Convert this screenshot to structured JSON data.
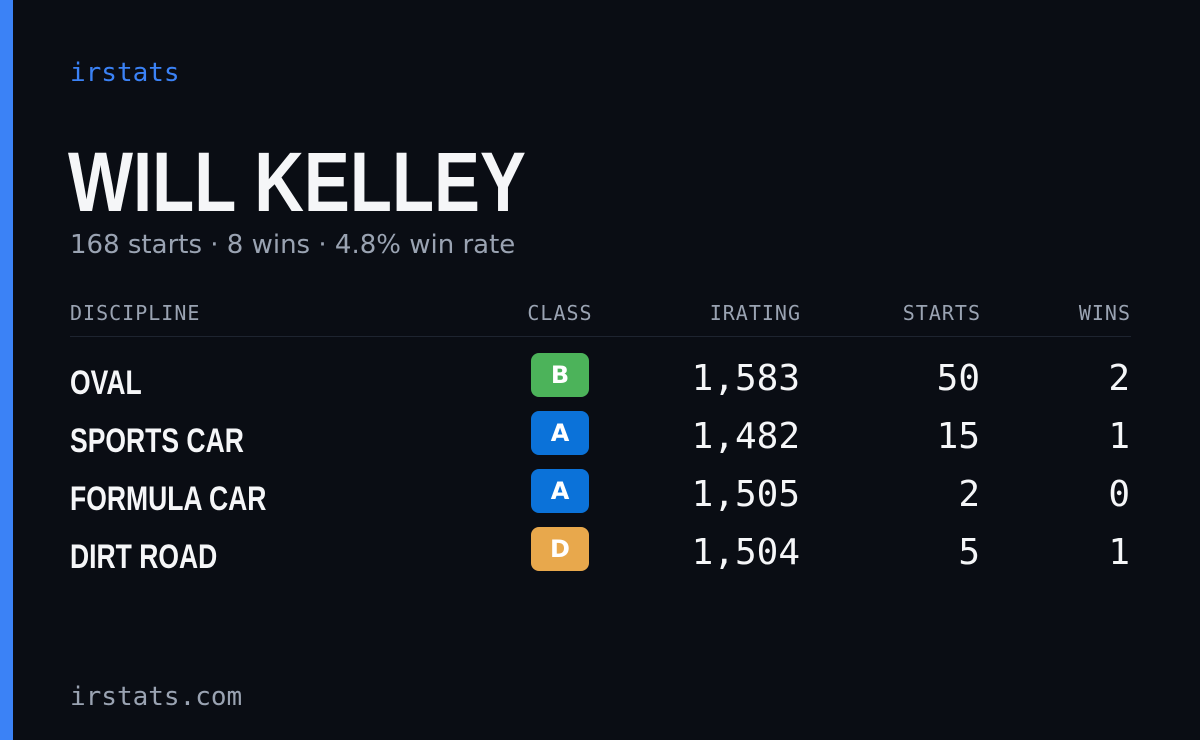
{
  "brand": "irstats",
  "driver": {
    "name": "WILL KELLEY",
    "summary": "168 starts · 8 wins · 4.8% win rate"
  },
  "table": {
    "headers": {
      "discipline": "DISCIPLINE",
      "class": "CLASS",
      "irating": "IRATING",
      "starts": "STARTS",
      "wins": "WINS"
    },
    "rows": [
      {
        "discipline": "OVAL",
        "class": "B",
        "class_color": "#4cb35a",
        "irating": "1,583",
        "starts": "50",
        "wins": "2"
      },
      {
        "discipline": "SPORTS CAR",
        "class": "A",
        "class_color": "#0b72d9",
        "irating": "1,482",
        "starts": "15",
        "wins": "1"
      },
      {
        "discipline": "FORMULA CAR",
        "class": "A",
        "class_color": "#0b72d9",
        "irating": "1,505",
        "starts": "2",
        "wins": "0"
      },
      {
        "discipline": "DIRT ROAD",
        "class": "D",
        "class_color": "#e8a84c",
        "irating": "1,504",
        "starts": "5",
        "wins": "1"
      }
    ]
  },
  "footer": "irstats.com",
  "colors": {
    "accent": "#3b82f6",
    "background": "#0a0d14"
  }
}
